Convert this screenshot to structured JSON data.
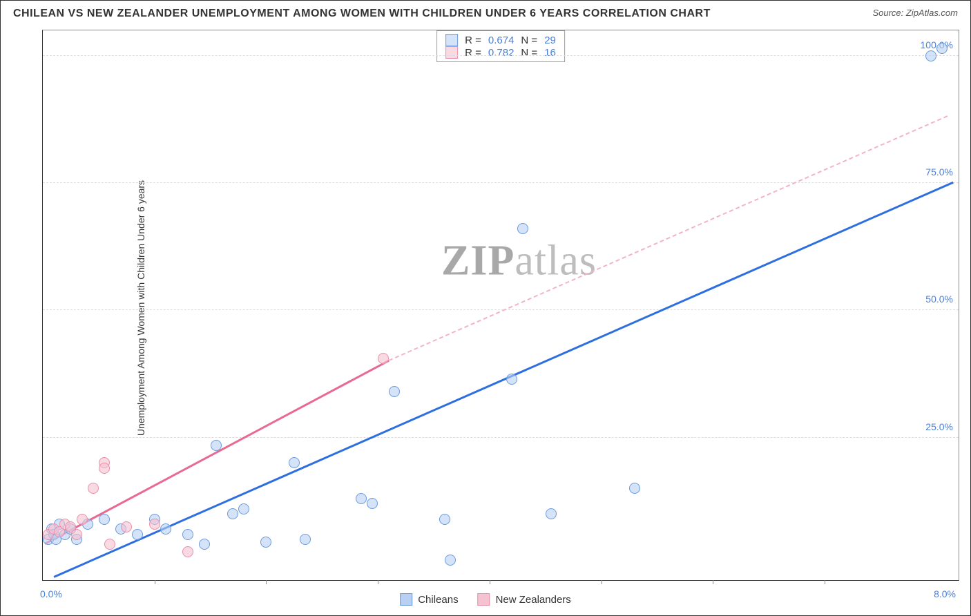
{
  "title": "CHILEAN VS NEW ZEALANDER UNEMPLOYMENT AMONG WOMEN WITH CHILDREN UNDER 6 YEARS CORRELATION CHART",
  "source_label": "Source: ",
  "source_value": "ZipAtlas.com",
  "ylabel": "Unemployment Among Women with Children Under 6 years",
  "watermark_a": "ZIP",
  "watermark_b": "atlas",
  "chart": {
    "type": "scatter",
    "xlim": [
      0,
      8.2
    ],
    "ylim": [
      -3,
      105
    ],
    "x_ticks_major": [
      0,
      8
    ],
    "x_ticks_minor": [
      1,
      2,
      3,
      4,
      5,
      6,
      7
    ],
    "y_ticks": [
      25,
      50,
      75,
      100
    ],
    "x_tick_labels": {
      "0": "0.0%",
      "8": "8.0%"
    },
    "y_tick_labels": {
      "25": "25.0%",
      "50": "50.0%",
      "75": "75.0%",
      "100": "100.0%"
    },
    "grid_color": "#dddddd",
    "axis_color": "#333333",
    "background_color": "#ffffff",
    "point_radius": 8,
    "series": [
      {
        "name": "Chileans",
        "color_fill": "#b8d0f299",
        "color_stroke": "#6a9ae0",
        "r": 0.674,
        "n": 29,
        "trend": {
          "x1": 0.1,
          "y1": -2.5,
          "x2": 8.15,
          "y2": 75,
          "stroke": "#2e6fe0",
          "width": 2.5
        },
        "points": [
          [
            0.05,
            5
          ],
          [
            0.08,
            7
          ],
          [
            0.1,
            6
          ],
          [
            0.12,
            5
          ],
          [
            0.15,
            8
          ],
          [
            0.2,
            6
          ],
          [
            0.25,
            7
          ],
          [
            0.3,
            5
          ],
          [
            0.4,
            8
          ],
          [
            0.55,
            9
          ],
          [
            0.7,
            7
          ],
          [
            0.85,
            6
          ],
          [
            1.0,
            9
          ],
          [
            1.1,
            7
          ],
          [
            1.3,
            6
          ],
          [
            1.45,
            4
          ],
          [
            1.55,
            23.5
          ],
          [
            1.7,
            10
          ],
          [
            1.8,
            11
          ],
          [
            2.0,
            4.5
          ],
          [
            2.25,
            20
          ],
          [
            2.35,
            5
          ],
          [
            2.85,
            13
          ],
          [
            2.95,
            12
          ],
          [
            3.15,
            34
          ],
          [
            3.6,
            9
          ],
          [
            3.65,
            1
          ],
          [
            4.2,
            36.5
          ],
          [
            4.3,
            66
          ],
          [
            4.55,
            10
          ],
          [
            5.3,
            15
          ],
          [
            7.95,
            100
          ],
          [
            8.05,
            101.5
          ]
        ]
      },
      {
        "name": "New Zealanders",
        "color_fill": "#f5c2d199",
        "color_stroke": "#e98fab",
        "r": 0.782,
        "n": 16,
        "trend_solid": {
          "x1": 0.02,
          "y1": 4,
          "x2": 3.1,
          "y2": 40,
          "stroke": "#e86a93",
          "width": 2.5
        },
        "trend_dashed": {
          "x1": 3.1,
          "y1": 40,
          "x2": 8.1,
          "y2": 88,
          "stroke": "#f3b3c6",
          "width": 2
        },
        "points": [
          [
            0.05,
            6
          ],
          [
            0.1,
            7
          ],
          [
            0.15,
            6.5
          ],
          [
            0.2,
            8
          ],
          [
            0.25,
            7.5
          ],
          [
            0.3,
            6
          ],
          [
            0.35,
            9
          ],
          [
            0.45,
            15
          ],
          [
            0.55,
            20
          ],
          [
            0.55,
            19
          ],
          [
            0.6,
            4
          ],
          [
            0.75,
            7.5
          ],
          [
            1.0,
            8
          ],
          [
            1.3,
            2.5
          ],
          [
            3.05,
            40.5
          ]
        ]
      }
    ],
    "stats_labels": {
      "R": "R =",
      "N": "N ="
    },
    "legend": [
      {
        "label": "Chileans",
        "fill": "#b8d0f2",
        "stroke": "#6a9ae0"
      },
      {
        "label": "New Zealanders",
        "fill": "#f5c2d1",
        "stroke": "#e98fab"
      }
    ]
  }
}
